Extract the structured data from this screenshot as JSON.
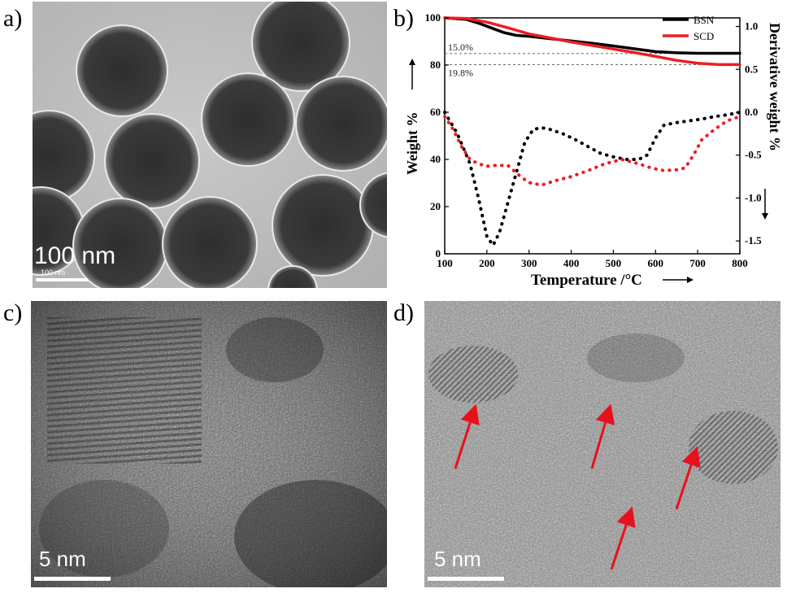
{
  "panels": {
    "a": {
      "label": "a)",
      "scale_label": "100 nm",
      "scale_sublabel": "100 nm"
    },
    "b": {
      "label": "b)"
    },
    "c": {
      "label": "c)",
      "scale_label": "5 nm"
    },
    "d": {
      "label": "d)",
      "scale_label": "5 nm",
      "arrow_count": 4
    }
  },
  "chart_data": {
    "type": "line",
    "xlabel": "Temperature /°C",
    "ylabel_left": "Weight %",
    "ylabel_right": "Derivative weight %",
    "xlim": [
      100,
      800
    ],
    "ylim_left": [
      0,
      100
    ],
    "ylim_right": [
      -1.65,
      1.1
    ],
    "xticks": [
      "100",
      "200",
      "300",
      "400",
      "500",
      "600",
      "700",
      "800"
    ],
    "yticks_left": [
      "0",
      "20",
      "40",
      "60",
      "80",
      "100"
    ],
    "yticks_right": [
      "-1.5",
      "-1.0",
      "-0.5",
      "0.0",
      "0.5",
      "1.0"
    ],
    "annotations": [
      {
        "text": "15.0%",
        "y": 84.9
      },
      {
        "text": "19.8%",
        "y": 80.2
      }
    ],
    "legend_position": "top-right",
    "series": [
      {
        "name": "BSN",
        "color": "#000000",
        "axis": "left",
        "style": "solid",
        "x": [
          100,
          150,
          180,
          210,
          240,
          270,
          300,
          350,
          400,
          450,
          500,
          550,
          600,
          650,
          700,
          750,
          800
        ],
        "y": [
          100,
          99.4,
          97.8,
          95.8,
          93.8,
          92.6,
          92.2,
          91.2,
          90.2,
          89.2,
          88.1,
          86.9,
          85.7,
          85.2,
          85.0,
          85.0,
          85.0
        ]
      },
      {
        "name": "SCD",
        "color": "#ee1c24",
        "axis": "left",
        "style": "solid",
        "x": [
          100,
          150,
          200,
          250,
          300,
          350,
          400,
          450,
          500,
          550,
          600,
          650,
          700,
          750,
          800
        ],
        "y": [
          100,
          99.8,
          98.2,
          95.8,
          93.2,
          91.5,
          89.8,
          88.3,
          86.8,
          85.3,
          83.7,
          82.0,
          80.8,
          80.2,
          80.2
        ]
      },
      {
        "name": "",
        "color": "#000000",
        "axis": "right",
        "style": "dotted",
        "x": [
          100,
          130,
          160,
          180,
          200,
          215,
          230,
          250,
          270,
          290,
          310,
          330,
          350,
          380,
          410,
          440,
          470,
          500,
          530,
          560,
          580,
          600,
          620,
          650,
          680,
          710,
          740,
          770,
          800
        ],
        "y": [
          0.0,
          -0.25,
          -0.6,
          -1.0,
          -1.45,
          -1.55,
          -1.4,
          -1.05,
          -0.7,
          -0.35,
          -0.2,
          -0.18,
          -0.2,
          -0.25,
          -0.32,
          -0.4,
          -0.48,
          -0.52,
          -0.55,
          -0.55,
          -0.5,
          -0.3,
          -0.15,
          -0.12,
          -0.1,
          -0.08,
          -0.05,
          -0.03,
          0.0
        ]
      },
      {
        "name": "",
        "color": "#ee1c24",
        "axis": "right",
        "style": "dotted",
        "x": [
          100,
          120,
          140,
          160,
          180,
          200,
          220,
          250,
          280,
          300,
          330,
          360,
          400,
          440,
          480,
          520,
          560,
          590,
          620,
          650,
          670,
          690,
          710,
          740,
          770,
          800
        ],
        "y": [
          -0.05,
          -0.2,
          -0.4,
          -0.55,
          -0.6,
          -0.63,
          -0.62,
          -0.62,
          -0.75,
          -0.82,
          -0.85,
          -0.8,
          -0.75,
          -0.68,
          -0.6,
          -0.55,
          -0.6,
          -0.65,
          -0.68,
          -0.67,
          -0.65,
          -0.5,
          -0.32,
          -0.2,
          -0.1,
          -0.05
        ]
      }
    ]
  }
}
